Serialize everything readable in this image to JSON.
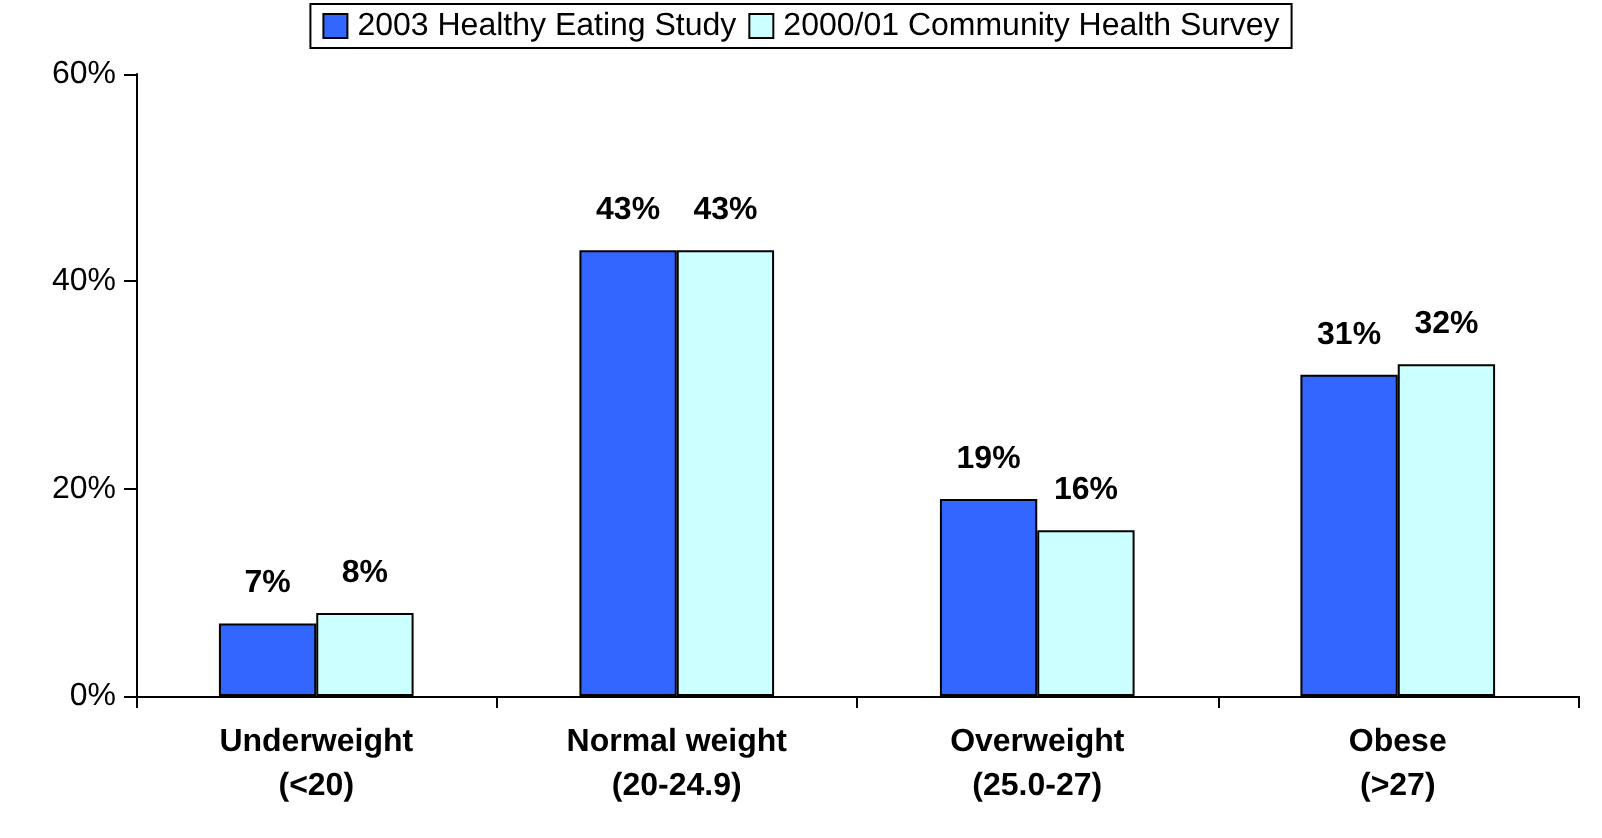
{
  "chart_data": {
    "type": "bar",
    "categories": [
      "Underweight\n(<20)",
      "Normal weight\n(20-24.9)",
      "Overweight\n(25.0-27)",
      "Obese\n(>27)"
    ],
    "series": [
      {
        "name": "2003 Healthy Eating Study",
        "color": "#3366ff",
        "values": [
          7,
          43,
          19,
          31
        ],
        "value_labels": [
          "7%",
          "43%",
          "19%",
          "31%"
        ]
      },
      {
        "name": "2000/01 Community Health Survey",
        "color": "#ccffff",
        "values": [
          8,
          43,
          16,
          32
        ],
        "value_labels": [
          "8%",
          "43%",
          "16%",
          "32%"
        ]
      }
    ],
    "ylim": [
      0,
      60
    ],
    "yticks": [
      {
        "value": 0,
        "label": "0%"
      },
      {
        "value": 20,
        "label": "20%"
      },
      {
        "value": 40,
        "label": "40%"
      },
      {
        "value": 60,
        "label": "60%"
      }
    ],
    "grid": false,
    "legend": "top"
  }
}
